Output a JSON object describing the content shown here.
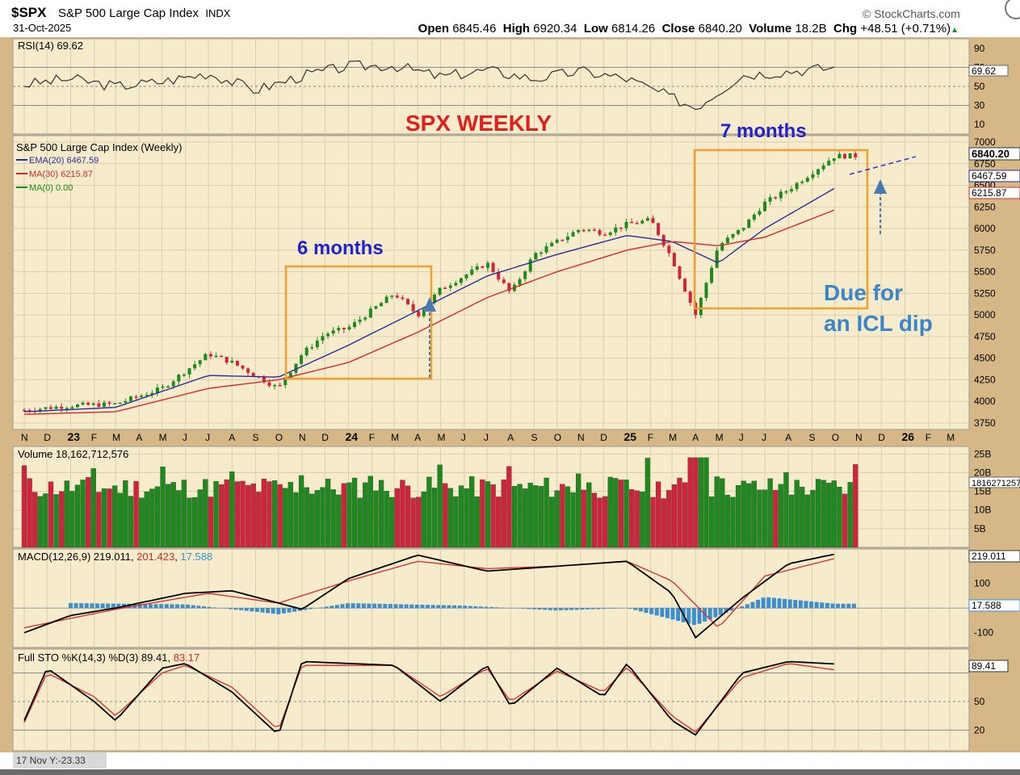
{
  "header": {
    "symbol": "$SPX",
    "name": "S&P 500 Large Cap Index",
    "exchange": "INDX",
    "date": "31-Oct-2025",
    "brand": "StockCharts.com",
    "open_label": "Open",
    "open": "6845.46",
    "high_label": "High",
    "high": "6920.34",
    "low_label": "Low",
    "low": "6814.26",
    "close_label": "Close",
    "close": "6840.20",
    "volume_label": "Volume",
    "volume": "18.2B",
    "chg_label": "Chg",
    "chg": "+48.51 (+0.71%)",
    "chg_arrow": "▲"
  },
  "annotations": {
    "title": "SPX WEEKLY",
    "box1_label": "6 months",
    "box2_label": "7 months",
    "note_line1": "Due for",
    "note_line2": "an ICL dip"
  },
  "colors": {
    "panel_bg": "#f6eccb",
    "frame_bg": "#d6b887",
    "up": "#1e8a1e",
    "down": "#d0243c",
    "ema": "#2b2b9e",
    "ma30": "#d62a2a",
    "ma0": "#1a8a1a",
    "box": "#f0a030",
    "title_red": "#e0201e",
    "label_blue": "#2222cc",
    "note_blue": "#3a86c8",
    "macd_hist": "#3b8fd0"
  },
  "chart_data": [
    {
      "type": "line",
      "panel": "rsi",
      "legend": "RSI(14) 69.62",
      "last_value_label": "69.62",
      "ylim": [
        0,
        100
      ],
      "y_ticks": [
        "90",
        "70",
        "50",
        "30",
        "10"
      ],
      "x": [
        "2022-11",
        "2023-01",
        "2023-03",
        "2023-05",
        "2023-07",
        "2023-09",
        "2023-11",
        "2024-01",
        "2024-03",
        "2024-05",
        "2024-07",
        "2024-09",
        "2024-11",
        "2025-01",
        "2025-03",
        "2025-04",
        "2025-06",
        "2025-08",
        "2025-10"
      ],
      "values": [
        52,
        58,
        50,
        55,
        64,
        46,
        61,
        71,
        72,
        60,
        67,
        58,
        66,
        58,
        38,
        28,
        62,
        66,
        69.62
      ]
    },
    {
      "type": "line",
      "panel": "price",
      "legend": "S&P 500 Large Cap Index (Weekly) 6840.20",
      "ylim": [
        3600,
        7000
      ],
      "y_ticks": [
        "7000",
        "6750",
        "6500",
        "6250",
        "6000",
        "5750",
        "5500",
        "5250",
        "5000",
        "4750",
        "4500",
        "4250",
        "4000",
        "3750"
      ],
      "x_ticks": [
        "N",
        "D",
        "23",
        "F",
        "M",
        "A",
        "M",
        "J",
        "J",
        "A",
        "S",
        "O",
        "N",
        "D",
        "24",
        "F",
        "M",
        "A",
        "M",
        "J",
        "J",
        "A",
        "S",
        "O",
        "N",
        "D",
        "25",
        "F",
        "M",
        "A",
        "M",
        "J",
        "J",
        "A",
        "S",
        "O",
        "N",
        "D",
        "26",
        "F",
        "M"
      ],
      "last_labels": {
        "close": "6840.20",
        "ema": "6467.59",
        "ma30": "6215.87"
      },
      "series": [
        {
          "name": "S&P 500 Large Cap Index (Weekly)",
          "x": [
            "2022-11",
            "2023-01",
            "2023-03",
            "2023-05",
            "2023-07",
            "2023-08",
            "2023-10",
            "2023-11",
            "2023-12",
            "2024-01",
            "2024-03",
            "2024-04",
            "2024-05",
            "2024-07",
            "2024-08",
            "2024-09",
            "2024-11",
            "2024-12",
            "2025-01",
            "2025-02",
            "2025-03",
            "2025-04",
            "2025-05",
            "2025-06",
            "2025-07",
            "2025-08",
            "2025-09",
            "2025-10"
          ],
          "values": [
            3900,
            3950,
            3970,
            4150,
            4550,
            4450,
            4150,
            4550,
            4780,
            4850,
            5250,
            5000,
            5300,
            5600,
            5250,
            5700,
            6000,
            5950,
            6050,
            6100,
            5650,
            5000,
            5800,
            6000,
            6300,
            6450,
            6650,
            6840.2
          ]
        },
        {
          "name": "EMA(20) 6467.59",
          "x": [
            "2022-11",
            "2023-03",
            "2023-07",
            "2023-10",
            "2024-01",
            "2024-04",
            "2024-07",
            "2024-10",
            "2025-01",
            "2025-03",
            "2025-05",
            "2025-07",
            "2025-10"
          ],
          "values": [
            3880,
            3930,
            4300,
            4280,
            4650,
            5050,
            5450,
            5700,
            5920,
            5850,
            5600,
            6000,
            6467.59
          ]
        },
        {
          "name": "MA(30) 6215.87",
          "x": [
            "2022-11",
            "2023-03",
            "2023-07",
            "2023-10",
            "2024-01",
            "2024-04",
            "2024-07",
            "2024-10",
            "2025-01",
            "2025-03",
            "2025-05",
            "2025-07",
            "2025-10"
          ],
          "values": [
            3850,
            3880,
            4150,
            4250,
            4450,
            4800,
            5200,
            5500,
            5750,
            5850,
            5800,
            5900,
            6215.87
          ]
        },
        {
          "name": "MA(0) 0.00",
          "values": []
        }
      ]
    },
    {
      "type": "bar",
      "panel": "volume",
      "legend": "Volume 18,162,712,576",
      "last_value_label": "18162712576",
      "y_ticks": [
        "25B",
        "20B",
        "15B",
        "10B",
        "5B"
      ],
      "ylim": [
        0,
        27
      ],
      "units": "B"
    },
    {
      "type": "line",
      "panel": "macd",
      "legend_parts": [
        "MACD(12,26,9) 219.011",
        "201.423",
        "17.588"
      ],
      "last_labels": {
        "macd": "219.011",
        "hist": "17.588"
      },
      "y_ticks": [
        "100",
        "-100"
      ],
      "ylim": [
        -160,
        240
      ],
      "series": [
        {
          "name": "MACD(12,26,9) 219.011",
          "x": [
            "2022-11",
            "2023-01",
            "2023-03",
            "2023-06",
            "2023-08",
            "2023-11",
            "2024-01",
            "2024-04",
            "2024-07",
            "2024-10",
            "2025-01",
            "2025-03",
            "2025-04",
            "2025-06",
            "2025-08",
            "2025-10"
          ],
          "values": [
            -100,
            -30,
            0,
            60,
            70,
            -5,
            120,
            215,
            150,
            170,
            190,
            60,
            -120,
            40,
            180,
            219.011
          ]
        },
        {
          "name": "201.423",
          "x": [
            "2022-11",
            "2023-03",
            "2023-07",
            "2023-10",
            "2024-01",
            "2024-04",
            "2024-07",
            "2024-10",
            "2025-01",
            "2025-03",
            "2025-05",
            "2025-07",
            "2025-10"
          ],
          "values": [
            -80,
            -5,
            60,
            20,
            110,
            190,
            160,
            170,
            190,
            110,
            -80,
            130,
            201.423
          ]
        },
        {
          "name": "17.588",
          "x": [
            "2023-01",
            "2023-06",
            "2023-10",
            "2024-01",
            "2024-06",
            "2024-10",
            "2025-01",
            "2025-04",
            "2025-07",
            "2025-10"
          ],
          "values": [
            20,
            15,
            -25,
            20,
            10,
            -10,
            0,
            -70,
            45,
            17.588
          ]
        }
      ]
    },
    {
      "type": "line",
      "panel": "stochastic",
      "legend_parts": [
        "Full STO %K(14,3) %D(3) 89.41",
        "83.17"
      ],
      "last_value_label": "89.41",
      "ylim": [
        0,
        100
      ],
      "y_ticks": [
        "50",
        "20"
      ],
      "series": [
        {
          "name": "%K 89.41",
          "x": [
            "2022-11",
            "2022-12",
            "2023-02",
            "2023-03",
            "2023-05",
            "2023-06",
            "2023-08",
            "2023-10",
            "2023-11",
            "2024-03",
            "2024-05",
            "2024-07",
            "2024-08",
            "2024-10",
            "2024-12",
            "2025-01",
            "2025-03",
            "2025-04",
            "2025-06",
            "2025-08",
            "2025-10"
          ],
          "values": [
            30,
            85,
            50,
            30,
            85,
            90,
            60,
            15,
            92,
            88,
            50,
            88,
            45,
            85,
            55,
            90,
            30,
            15,
            80,
            92,
            89.41
          ]
        },
        {
          "name": "%D 83.17",
          "x": [
            "2022-11",
            "2022-12",
            "2023-02",
            "2023-03",
            "2023-05",
            "2023-06",
            "2023-08",
            "2023-10",
            "2023-11",
            "2024-03",
            "2024-05",
            "2024-07",
            "2024-08",
            "2024-10",
            "2024-12",
            "2025-01",
            "2025-03",
            "2025-04",
            "2025-06",
            "2025-08",
            "2025-10"
          ],
          "values": [
            28,
            80,
            55,
            35,
            80,
            88,
            65,
            20,
            88,
            88,
            55,
            85,
            50,
            82,
            60,
            86,
            35,
            18,
            75,
            90,
            83.17
          ]
        }
      ]
    }
  ],
  "footer": {
    "readout": "17 Nov Y:-23.33"
  }
}
